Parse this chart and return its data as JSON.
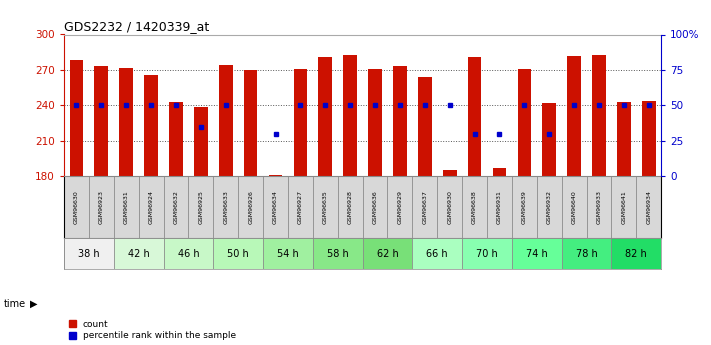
{
  "title": "GDS2232 / 1420339_at",
  "samples": [
    "GSM96630",
    "GSM96923",
    "GSM96631",
    "GSM96924",
    "GSM96632",
    "GSM96925",
    "GSM96633",
    "GSM96926",
    "GSM96634",
    "GSM96927",
    "GSM96635",
    "GSM96928",
    "GSM96636",
    "GSM96929",
    "GSM96637",
    "GSM96930",
    "GSM96638",
    "GSM96931",
    "GSM96639",
    "GSM96932",
    "GSM96640",
    "GSM96933",
    "GSM96641",
    "GSM96934"
  ],
  "timepoints": [
    "38 h",
    "42 h",
    "46 h",
    "50 h",
    "54 h",
    "58 h",
    "62 h",
    "66 h",
    "70 h",
    "74 h",
    "78 h",
    "82 h"
  ],
  "timepoint_colors": [
    "#f0f0f0",
    "#d8f8d8",
    "#c8f8c8",
    "#b8f8b8",
    "#a0f0a0",
    "#88e888",
    "#78e078",
    "#aaffc0",
    "#88ffb0",
    "#66ff99",
    "#44ee80",
    "#22dd66"
  ],
  "counts": [
    278,
    273,
    272,
    266,
    243,
    239,
    274,
    270,
    181,
    271,
    281,
    283,
    271,
    273,
    264,
    185,
    281,
    187,
    271,
    242,
    282,
    283,
    243,
    244
  ],
  "percentiles": [
    50,
    50,
    50,
    50,
    50,
    35,
    50,
    null,
    30,
    50,
    50,
    50,
    50,
    50,
    50,
    50,
    30,
    30,
    50,
    30,
    50,
    50,
    50,
    50
  ],
  "ylim_left": [
    180,
    300
  ],
  "ylim_right": [
    0,
    100
  ],
  "yticks_left": [
    180,
    210,
    240,
    270,
    300
  ],
  "yticks_right": [
    0,
    25,
    50,
    75,
    100
  ],
  "bar_color": "#cc1100",
  "dot_color": "#0000cc",
  "sample_cell_color": "#d8d8d8",
  "chart_bg": "#ffffff"
}
